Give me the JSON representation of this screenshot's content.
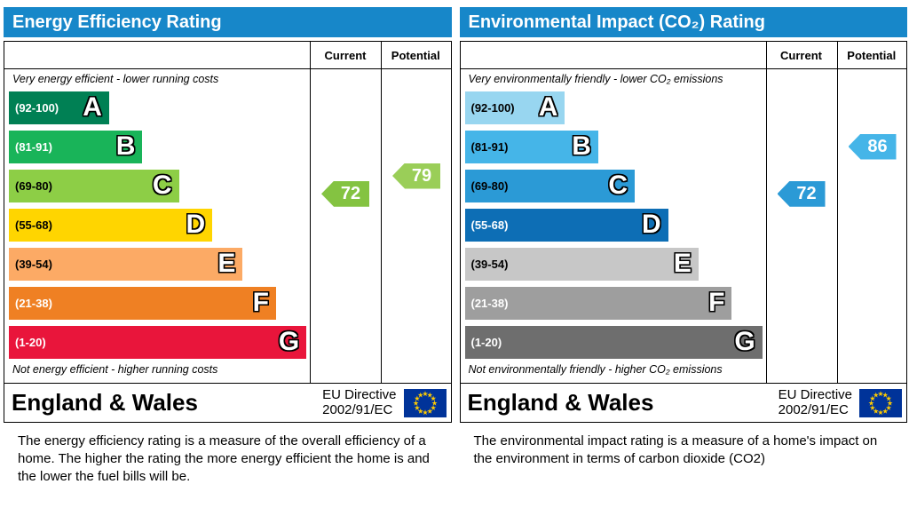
{
  "theme": {
    "page_bg": "#ffffff",
    "header_bg": "#1787c9",
    "header_text": "#ffffff",
    "border": "#000000",
    "flag_bg": "#003399",
    "flag_star": "#ffcc00"
  },
  "chart_data": [
    {
      "type": "bar",
      "title": "Energy Efficiency Rating",
      "columns": {
        "current_label": "Current",
        "potential_label": "Potential"
      },
      "top_note": "Very energy efficient - lower running costs",
      "bottom_note": "Not energy efficient - higher running costs",
      "bands": [
        {
          "letter": "A",
          "range_label": "(92-100)",
          "lo": 92,
          "hi": 100,
          "width_pct": 33,
          "color": "#008054",
          "label_color": "#ffffff"
        },
        {
          "letter": "B",
          "range_label": "(81-91)",
          "lo": 81,
          "hi": 91,
          "width_pct": 44,
          "color": "#19b459",
          "label_color": "#ffffff"
        },
        {
          "letter": "C",
          "range_label": "(69-80)",
          "lo": 69,
          "hi": 80,
          "width_pct": 56,
          "color": "#8dce46",
          "label_color": "#000000"
        },
        {
          "letter": "D",
          "range_label": "(55-68)",
          "lo": 55,
          "hi": 68,
          "width_pct": 67,
          "color": "#ffd500",
          "label_color": "#000000"
        },
        {
          "letter": "E",
          "range_label": "(39-54)",
          "lo": 39,
          "hi": 54,
          "width_pct": 77,
          "color": "#fcaa65",
          "label_color": "#000000"
        },
        {
          "letter": "F",
          "range_label": "(21-38)",
          "lo": 21,
          "hi": 38,
          "width_pct": 88,
          "color": "#ef8023",
          "label_color": "#ffffff"
        },
        {
          "letter": "G",
          "range_label": "(1-20)",
          "lo": 1,
          "hi": 20,
          "width_pct": 98,
          "color": "#e9153b",
          "label_color": "#ffffff"
        }
      ],
      "current": {
        "value": 72,
        "band": "C",
        "color": "#84c341"
      },
      "potential": {
        "value": 79,
        "band": "C",
        "color": "#9ace58"
      },
      "footer": {
        "region": "England & Wales",
        "directive": [
          "EU Directive",
          "2002/91/EC"
        ]
      },
      "description": "The energy efficiency rating is a measure of the overall efficiency of a home.  The higher the rating the more energy efficient the home is and the lower the fuel bills will be."
    },
    {
      "type": "bar",
      "title": "Environmental Impact (CO₂) Rating",
      "columns": {
        "current_label": "Current",
        "potential_label": "Potential"
      },
      "top_note": "Very environmentally friendly - lower CO₂ emissions",
      "bottom_note": "Not environmentally friendly - higher CO₂ emissions",
      "bands": [
        {
          "letter": "A",
          "range_label": "(92-100)",
          "lo": 92,
          "hi": 100,
          "width_pct": 33,
          "color": "#98d6f0",
          "label_color": "#000000"
        },
        {
          "letter": "B",
          "range_label": "(81-91)",
          "lo": 81,
          "hi": 91,
          "width_pct": 44,
          "color": "#45b5e8",
          "label_color": "#000000"
        },
        {
          "letter": "C",
          "range_label": "(69-80)",
          "lo": 69,
          "hi": 80,
          "width_pct": 56,
          "color": "#2b9ad6",
          "label_color": "#000000"
        },
        {
          "letter": "D",
          "range_label": "(55-68)",
          "lo": 55,
          "hi": 68,
          "width_pct": 67,
          "color": "#0d6eb5",
          "label_color": "#ffffff"
        },
        {
          "letter": "E",
          "range_label": "(39-54)",
          "lo": 39,
          "hi": 54,
          "width_pct": 77,
          "color": "#c7c7c7",
          "label_color": "#000000"
        },
        {
          "letter": "F",
          "range_label": "(21-38)",
          "lo": 21,
          "hi": 38,
          "width_pct": 88,
          "color": "#9e9e9e",
          "label_color": "#ffffff"
        },
        {
          "letter": "G",
          "range_label": "(1-20)",
          "lo": 1,
          "hi": 20,
          "width_pct": 98,
          "color": "#6e6e6e",
          "label_color": "#ffffff"
        }
      ],
      "current": {
        "value": 72,
        "band": "C",
        "color": "#2b9ad6"
      },
      "potential": {
        "value": 86,
        "band": "B",
        "color": "#45b5e8"
      },
      "footer": {
        "region": "England & Wales",
        "directive": [
          "EU Directive",
          "2002/91/EC"
        ]
      },
      "description": "The environmental impact rating is a measure of a home's impact on the environment in terms of carbon dioxide (CO2)"
    }
  ]
}
